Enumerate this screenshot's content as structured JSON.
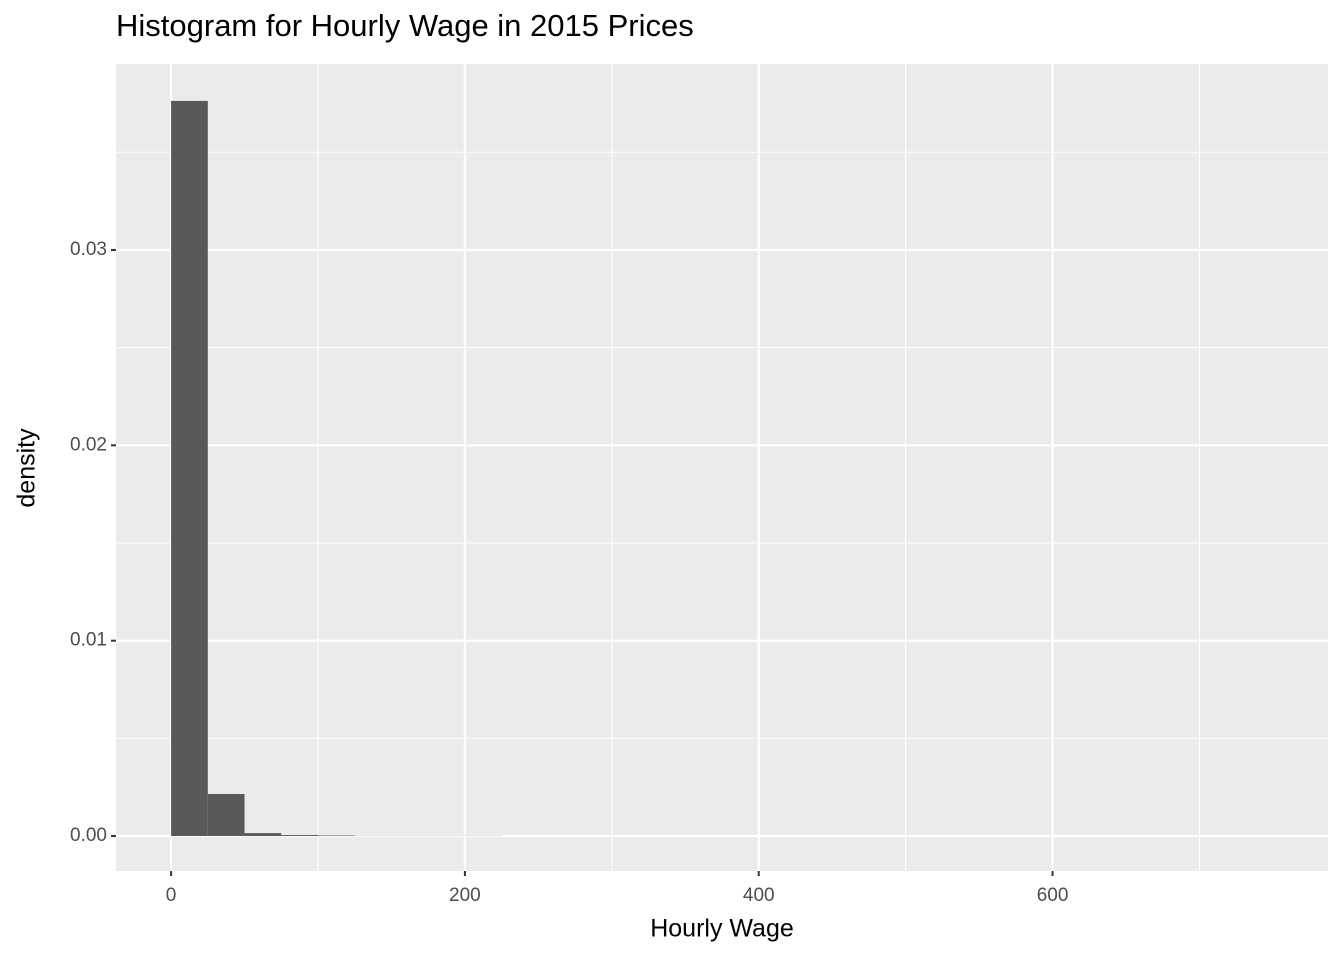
{
  "chart_data": {
    "type": "histogram",
    "title": "Histogram for Hourly Wage in 2015 Prices",
    "x_label": "Hourly Wage",
    "y_label": "density",
    "bins": [
      0,
      25,
      50,
      75,
      100,
      125,
      150,
      175,
      200,
      225,
      250,
      275,
      300,
      325,
      350,
      375,
      400,
      425,
      450,
      475,
      500,
      525,
      550,
      575,
      600,
      625,
      650,
      675,
      700,
      725,
      750
    ],
    "values": [
      0.03763,
      0.00215,
      0.00015,
      5e-05,
      3e-05,
      1e-05,
      1e-05,
      1e-05,
      1e-05,
      0,
      0,
      0,
      0,
      0,
      0,
      0,
      0,
      0,
      0,
      0,
      0,
      0,
      0,
      0,
      0,
      0,
      0,
      0,
      0,
      0
    ],
    "color": "#595959",
    "xlim": [
      -37.5,
      787.5
    ],
    "xticks": [
      0,
      200,
      400,
      600
    ],
    "xminor": [
      100,
      300,
      500,
      700
    ],
    "ylim": [
      -0.00179,
      0.03952
    ],
    "yticks": [
      {
        "value": 0,
        "label": "0.00"
      },
      {
        "value": 0.01,
        "label": "0.01"
      },
      {
        "value": 0.02,
        "label": "0.02"
      },
      {
        "value": 0.03,
        "label": "0.03"
      }
    ],
    "yminor": [
      0.005,
      0.015,
      0.025,
      0.035
    ],
    "grid": true
  }
}
